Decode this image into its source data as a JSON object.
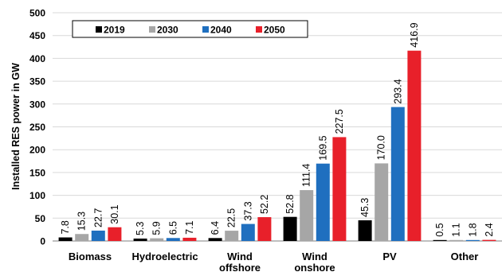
{
  "chart_data": {
    "type": "bar",
    "title": "",
    "xlabel": "",
    "ylabel": "Installed RES power in GW",
    "ylim": [
      0,
      500
    ],
    "yticks": [
      0,
      50,
      100,
      150,
      200,
      250,
      300,
      350,
      400,
      450,
      500
    ],
    "grid": true,
    "legend_position": "top-left",
    "categories": [
      [
        "Biomass"
      ],
      [
        "Hydroelectric"
      ],
      [
        "Wind",
        "offshore"
      ],
      [
        "Wind",
        "onshore"
      ],
      [
        "PV"
      ],
      [
        "Other"
      ]
    ],
    "series": [
      {
        "name": "2019",
        "color": "#000000",
        "values": [
          7.8,
          5.3,
          6.4,
          52.8,
          45.3,
          0.5
        ]
      },
      {
        "name": "2030",
        "color": "#a6a6a6",
        "values": [
          15.3,
          5.9,
          22.5,
          111.4,
          170.0,
          1.1
        ]
      },
      {
        "name": "2040",
        "color": "#1f6fbf",
        "values": [
          22.7,
          6.5,
          37.3,
          169.5,
          293.4,
          1.8
        ]
      },
      {
        "name": "2050",
        "color": "#e8202a",
        "values": [
          30.1,
          7.1,
          52.2,
          227.5,
          416.9,
          2.4
        ]
      }
    ]
  }
}
